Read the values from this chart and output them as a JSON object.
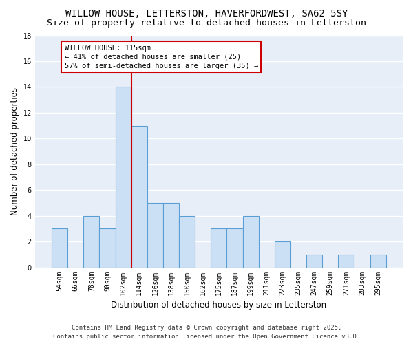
{
  "title": "WILLOW HOUSE, LETTERSTON, HAVERFORDWEST, SA62 5SY",
  "subtitle": "Size of property relative to detached houses in Letterston",
  "xlabel": "Distribution of detached houses by size in Letterston",
  "ylabel": "Number of detached properties",
  "categories": [
    "54sqm",
    "66sqm",
    "78sqm",
    "90sqm",
    "102sqm",
    "114sqm",
    "126sqm",
    "138sqm",
    "150sqm",
    "162sqm",
    "175sqm",
    "187sqm",
    "199sqm",
    "211sqm",
    "223sqm",
    "235sqm",
    "247sqm",
    "259sqm",
    "271sqm",
    "283sqm",
    "295sqm"
  ],
  "values": [
    3,
    0,
    4,
    3,
    14,
    11,
    5,
    5,
    4,
    0,
    3,
    3,
    4,
    0,
    2,
    0,
    1,
    0,
    1,
    0,
    1
  ],
  "bar_color": "#cce0f5",
  "bar_edge_color": "#5a9fd4",
  "vline_index": 5,
  "vline_color": "#cc0000",
  "annotation_line1": "WILLOW HOUSE: 115sqm",
  "annotation_line2": "← 41% of detached houses are smaller (25)",
  "annotation_line3": "57% of semi-detached houses are larger (35) →",
  "annotation_box_color": "#ffffff",
  "annotation_box_edge": "#cc0000",
  "ylim": [
    0,
    18
  ],
  "yticks": [
    0,
    2,
    4,
    6,
    8,
    10,
    12,
    14,
    16,
    18
  ],
  "background_color": "#e8eef8",
  "footer_line1": "Contains HM Land Registry data © Crown copyright and database right 2025.",
  "footer_line2": "Contains public sector information licensed under the Open Government Licence v3.0.",
  "title_fontsize": 10,
  "subtitle_fontsize": 9.5,
  "tick_fontsize": 7,
  "ylabel_fontsize": 8.5,
  "xlabel_fontsize": 8.5,
  "footer_fontsize": 6.5,
  "annotation_fontsize": 7.5
}
